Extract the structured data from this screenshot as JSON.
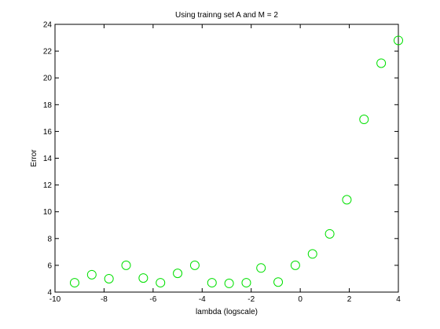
{
  "chart_data": {
    "type": "scatter",
    "title": "Using trainng set A and M = 2",
    "xlabel": "lambda (logscale)",
    "ylabel": "Error",
    "xlim": [
      -10,
      4
    ],
    "ylim": [
      4,
      24
    ],
    "xticks": [
      -10,
      -8,
      -6,
      -4,
      -2,
      0,
      2,
      4
    ],
    "yticks": [
      4,
      6,
      8,
      10,
      12,
      14,
      16,
      18,
      20,
      22,
      24
    ],
    "grid": false,
    "marker": "open-circle",
    "marker_color": "#00e000",
    "series": [
      {
        "x": [
          -9.2,
          -8.5,
          -7.8,
          -7.1,
          -6.4,
          -5.7,
          -5.0,
          -4.3,
          -3.6,
          -2.9,
          -2.2,
          -1.6,
          -0.9,
          -0.2,
          0.5,
          1.2,
          1.9,
          2.6,
          3.3,
          4.0
        ],
        "y": [
          4.7,
          5.3,
          5.0,
          6.0,
          5.05,
          4.7,
          5.4,
          6.0,
          4.7,
          4.65,
          4.7,
          5.8,
          4.75,
          6.0,
          6.85,
          8.35,
          10.9,
          16.9,
          21.1,
          22.8
        ]
      }
    ]
  }
}
